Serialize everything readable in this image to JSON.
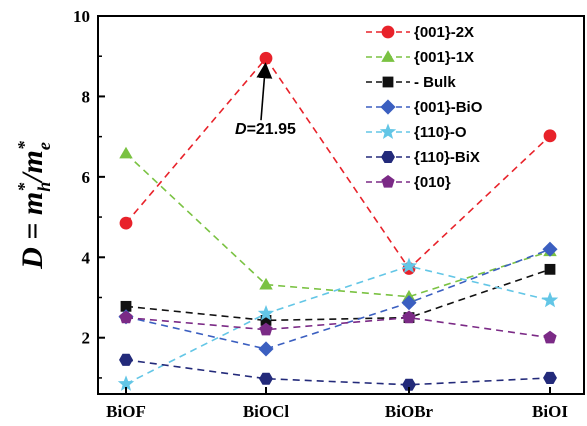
{
  "chart_data": {
    "type": "line",
    "categories": [
      "BiOF",
      "BiOCl",
      "BiOBr",
      "BiOI"
    ],
    "ylim": [
      0.6,
      10
    ],
    "yticks": [
      2,
      4,
      6,
      8,
      10
    ],
    "ylabel": "D = m*h/m*e",
    "ylabel_parts": {
      "main": "D = m",
      "sub_h": "h",
      "slash": "/m",
      "sub_e": "e",
      "star": "*"
    },
    "grid": false,
    "legend_position": "top-right",
    "series": [
      {
        "name": "{001}-2X",
        "color": "#e8222a",
        "marker": "circle",
        "values": [
          4.85,
          8.95,
          3.72,
          7.02
        ]
      },
      {
        "name": "{001}-1X",
        "color": "#7ac242",
        "marker": "triangle",
        "values": [
          6.58,
          3.32,
          3.02,
          4.15
        ]
      },
      {
        "name": "- Bulk",
        "color": "#111111",
        "marker": "square",
        "values": [
          2.78,
          2.43,
          2.5,
          3.7
        ]
      },
      {
        "name": "{001}-BiO",
        "color": "#3b5fc0",
        "marker": "diamond",
        "values": [
          2.52,
          1.72,
          2.87,
          4.2
        ]
      },
      {
        "name": "{110}-O",
        "color": "#63c6e6",
        "marker": "star",
        "values": [
          0.85,
          2.6,
          3.78,
          2.93
        ]
      },
      {
        "name": "{110}-BiX",
        "color": "#232a7a",
        "marker": "hexagon",
        "values": [
          1.45,
          0.98,
          0.83,
          1.0
        ]
      },
      {
        "name": "{010}",
        "color": "#7b2a86",
        "marker": "pentagon",
        "values": [
          2.5,
          2.2,
          2.5,
          2.0
        ]
      }
    ],
    "annotation": {
      "label_italic": "D",
      "label_rest": "=21.95",
      "category": "BiOCl",
      "value": 8.95
    }
  }
}
